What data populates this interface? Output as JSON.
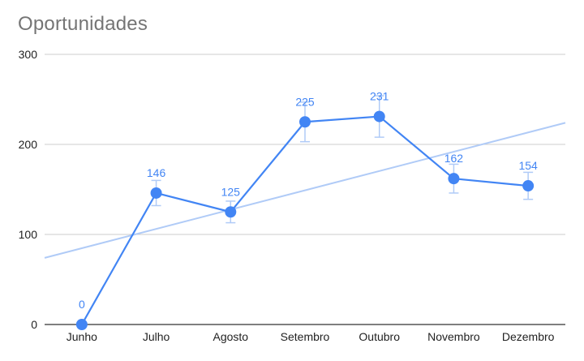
{
  "chart_title": "Oportunidades",
  "chart_data": {
    "type": "line",
    "title": "Oportunidades",
    "categories": [
      "Junho",
      "Julho",
      "Agosto",
      "Setembro",
      "Outubro",
      "Novembro",
      "Dezembro"
    ],
    "series": [
      {
        "values": [
          0,
          146,
          125,
          225,
          231,
          162,
          154
        ],
        "error_bars": [
          [
            0,
            0
          ],
          [
            132,
            160
          ],
          [
            113,
            137
          ],
          [
            203,
            247
          ],
          [
            208,
            254
          ],
          [
            146,
            178
          ],
          [
            139,
            169
          ]
        ]
      }
    ],
    "trendline": {
      "type": "linear",
      "start_value": 74,
      "end_value": 224
    },
    "ylim": [
      0,
      300
    ],
    "yticks": [
      "0",
      "100",
      "200",
      "300"
    ],
    "grid": true,
    "legend": "none",
    "colors": {
      "series": "#4285f4",
      "trendline": "#b0cbf7",
      "grid": "#cccccc",
      "label": "#4285f4"
    }
  }
}
